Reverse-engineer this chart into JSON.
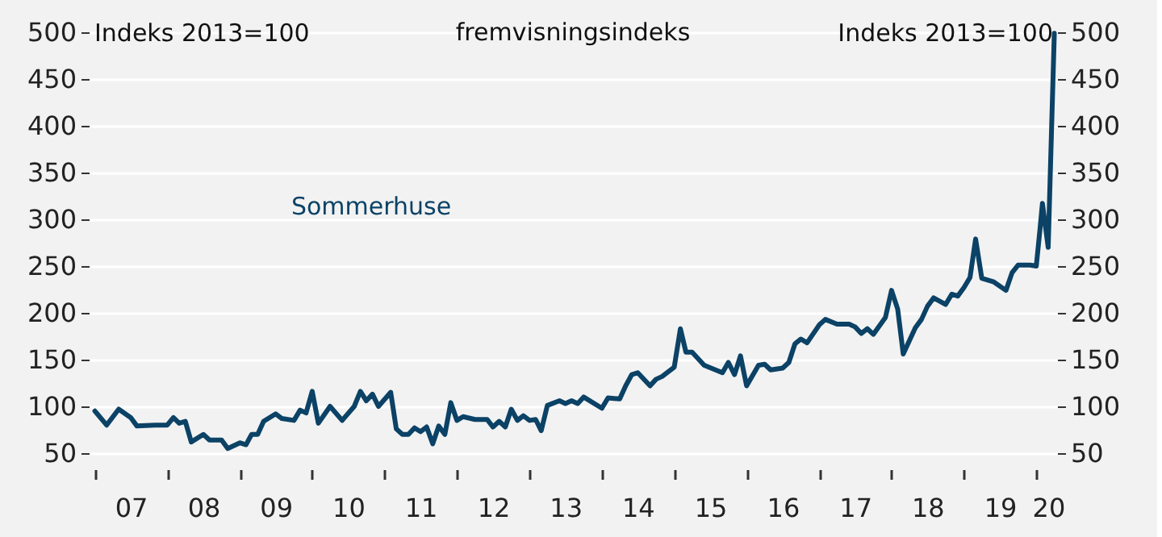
{
  "chart_data": {
    "type": "line",
    "title": "fremvisningsindeks",
    "ylabel": "Indeks 2013=100",
    "y2label": "Indeks 2013=100",
    "x": [
      "2007-01",
      "2007-03",
      "2007-05",
      "2007-07",
      "2007-08",
      "2007-11",
      "2008-01",
      "2008-02",
      "2008-03",
      "2008-04",
      "2008-05",
      "2008-07",
      "2008-08",
      "2008-10",
      "2008-11",
      "2009-01",
      "2009-02",
      "2009-03",
      "2009-04",
      "2009-05",
      "2009-07",
      "2009-08",
      "2009-10",
      "2009-11",
      "2009-12",
      "2010-01",
      "2010-02",
      "2010-04",
      "2010-06",
      "2010-08",
      "2010-09",
      "2010-10",
      "2010-11",
      "2010-12",
      "2011-02",
      "2011-03",
      "2011-04",
      "2011-05",
      "2011-06",
      "2011-07",
      "2011-08",
      "2011-09",
      "2011-10",
      "2011-11",
      "2011-12",
      "2012-01",
      "2012-02",
      "2012-04",
      "2012-06",
      "2012-07",
      "2012-08",
      "2012-09",
      "2012-10",
      "2012-11",
      "2012-12",
      "2013-01",
      "2013-02",
      "2013-03",
      "2013-04",
      "2013-06",
      "2013-07",
      "2013-08",
      "2013-09",
      "2013-10",
      "2014-01",
      "2014-02",
      "2014-04",
      "2014-05",
      "2014-06",
      "2014-07",
      "2014-09",
      "2014-10",
      "2014-11",
      "2015-01",
      "2015-02",
      "2015-03",
      "2015-04",
      "2015-06",
      "2015-09",
      "2015-10",
      "2015-11",
      "2015-12",
      "2016-01",
      "2016-03",
      "2016-04",
      "2016-05",
      "2016-07",
      "2016-08",
      "2016-09",
      "2016-10",
      "2016-11",
      "2017-01",
      "2017-02",
      "2017-04",
      "2017-06",
      "2017-07",
      "2017-08",
      "2017-09",
      "2017-10",
      "2017-12",
      "2018-01",
      "2018-02",
      "2018-03",
      "2018-05",
      "2018-06",
      "2018-07",
      "2018-08",
      "2018-10",
      "2018-11",
      "2018-12",
      "2019-01",
      "2019-02",
      "2019-03",
      "2019-04",
      "2019-06",
      "2019-08",
      "2019-09",
      "2019-10",
      "2019-12",
      "2020-01",
      "2020-01-20",
      "2020-02",
      "2020-03",
      "2020-04"
    ],
    "series": [
      {
        "name": "Sommerhuse",
        "color": "#0b4266",
        "values": [
          95,
          80,
          97,
          88,
          79,
          80,
          80,
          88,
          82,
          84,
          62,
          70,
          64,
          64,
          55,
          61,
          59,
          70,
          70,
          84,
          92,
          87,
          85,
          96,
          93,
          116,
          82,
          100,
          85,
          100,
          116,
          106,
          113,
          100,
          115,
          76,
          70,
          70,
          77,
          73,
          78,
          60,
          79,
          70,
          104,
          85,
          89,
          86,
          86,
          78,
          84,
          78,
          97,
          85,
          90,
          85,
          86,
          74,
          101,
          106,
          103,
          106,
          103,
          110,
          98,
          109,
          108,
          122,
          134,
          136,
          122,
          129,
          132,
          142,
          183,
          158,
          158,
          144,
          136,
          147,
          134,
          154,
          122,
          144,
          145,
          139,
          141,
          147,
          167,
          172,
          168,
          187,
          193,
          188,
          188,
          185,
          178,
          183,
          177,
          195,
          224,
          204,
          156,
          184,
          193,
          207,
          216,
          209,
          220,
          218,
          227,
          238,
          279,
          237,
          233,
          224,
          243,
          251,
          251,
          250,
          290,
          317,
          270,
          499
        ]
      }
    ],
    "xlim": [
      "2006-12",
      "2020-04-15"
    ],
    "xticks": [
      {
        "value": "2007",
        "label": null
      },
      {
        "value": "2007-07",
        "label": "07"
      },
      {
        "value": "2008",
        "label": null
      },
      {
        "value": "2008-07",
        "label": "08"
      },
      {
        "value": "2009",
        "label": null
      },
      {
        "value": "2009-07",
        "label": "09"
      },
      {
        "value": "2010",
        "label": null
      },
      {
        "value": "2010-07",
        "label": "10"
      },
      {
        "value": "2011",
        "label": null
      },
      {
        "value": "2011-07",
        "label": "11"
      },
      {
        "value": "2012",
        "label": null
      },
      {
        "value": "2012-07",
        "label": "12"
      },
      {
        "value": "2013",
        "label": null
      },
      {
        "value": "2013-07",
        "label": "13"
      },
      {
        "value": "2014",
        "label": null
      },
      {
        "value": "2014-07",
        "label": "14"
      },
      {
        "value": "2015",
        "label": null
      },
      {
        "value": "2015-07",
        "label": "15"
      },
      {
        "value": "2016",
        "label": null
      },
      {
        "value": "2016-07",
        "label": "16"
      },
      {
        "value": "2017",
        "label": null
      },
      {
        "value": "2017-07",
        "label": "17"
      },
      {
        "value": "2018",
        "label": null
      },
      {
        "value": "2018-07",
        "label": "18"
      },
      {
        "value": "2019",
        "label": null
      },
      {
        "value": "2019-07",
        "label": "19"
      },
      {
        "value": "2020",
        "label": null
      },
      {
        "value": "2020-03",
        "label": "20"
      }
    ],
    "ylim": [
      50,
      500
    ],
    "yticks": [
      50,
      100,
      150,
      200,
      250,
      300,
      350,
      400,
      450,
      500
    ],
    "y2lim": [
      50,
      500
    ],
    "y2ticks": [
      50,
      100,
      150,
      200,
      250,
      300,
      350,
      400,
      450,
      500
    ],
    "grid": "y",
    "legend": false
  }
}
